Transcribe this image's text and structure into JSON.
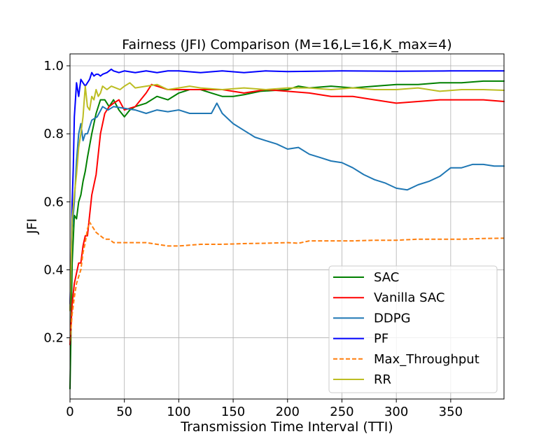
{
  "chart_data": {
    "type": "line",
    "title": "Fairness (JFI) Comparison (M=16,L=16,K_max=4)",
    "xlabel": "Transmission Time Interval (TTI)",
    "ylabel": "JFI",
    "xlim": [
      0,
      399
    ],
    "ylim": [
      0.02,
      1.035
    ],
    "xticks": [
      0,
      50,
      100,
      150,
      200,
      250,
      300,
      350
    ],
    "yticks": [
      0.2,
      0.4,
      0.6,
      0.8,
      1.0
    ],
    "xtick_labels": [
      "0",
      "50",
      "100",
      "150",
      "200",
      "250",
      "300",
      "350"
    ],
    "ytick_labels": [
      "0.2",
      "0.4",
      "0.6",
      "0.8",
      "1.0"
    ],
    "grid": true,
    "legend_position": "lower-right",
    "series": [
      {
        "name": "SAC",
        "color": "#008000",
        "dash": "solid",
        "x": [
          0,
          2,
          4,
          6,
          8,
          10,
          12,
          14,
          16,
          20,
          24,
          28,
          32,
          36,
          40,
          45,
          50,
          55,
          60,
          70,
          80,
          90,
          100,
          110,
          120,
          130,
          140,
          150,
          160,
          175,
          200,
          210,
          220,
          240,
          260,
          280,
          300,
          320,
          340,
          360,
          380,
          399
        ],
        "y": [
          0.05,
          0.42,
          0.56,
          0.55,
          0.6,
          0.62,
          0.66,
          0.69,
          0.73,
          0.8,
          0.86,
          0.9,
          0.9,
          0.88,
          0.9,
          0.87,
          0.85,
          0.87,
          0.88,
          0.89,
          0.91,
          0.9,
          0.92,
          0.93,
          0.93,
          0.92,
          0.91,
          0.91,
          0.915,
          0.925,
          0.93,
          0.94,
          0.935,
          0.94,
          0.935,
          0.94,
          0.945,
          0.945,
          0.95,
          0.95,
          0.955,
          0.955
        ]
      },
      {
        "name": "Vanilla SAC",
        "color": "#ff0000",
        "dash": "solid",
        "x": [
          0,
          2,
          4,
          6,
          8,
          10,
          12,
          14,
          16,
          20,
          24,
          28,
          32,
          36,
          40,
          45,
          50,
          60,
          70,
          75,
          80,
          90,
          100,
          120,
          140,
          160,
          180,
          200,
          220,
          240,
          260,
          280,
          300,
          320,
          340,
          360,
          380,
          399
        ],
        "y": [
          0.18,
          0.3,
          0.36,
          0.39,
          0.42,
          0.42,
          0.47,
          0.5,
          0.5,
          0.62,
          0.68,
          0.8,
          0.86,
          0.88,
          0.89,
          0.9,
          0.87,
          0.88,
          0.92,
          0.945,
          0.94,
          0.93,
          0.93,
          0.93,
          0.93,
          0.92,
          0.93,
          0.925,
          0.92,
          0.91,
          0.91,
          0.9,
          0.89,
          0.895,
          0.9,
          0.9,
          0.9,
          0.895
        ]
      },
      {
        "name": "DDPG",
        "color": "#1f77b4",
        "dash": "solid",
        "x": [
          0,
          2,
          4,
          6,
          8,
          10,
          12,
          14,
          16,
          20,
          25,
          30,
          35,
          40,
          50,
          60,
          70,
          80,
          90,
          100,
          110,
          120,
          130,
          135,
          140,
          150,
          160,
          170,
          180,
          190,
          200,
          210,
          220,
          230,
          240,
          250,
          260,
          270,
          280,
          290,
          300,
          310,
          320,
          330,
          340,
          350,
          360,
          370,
          380,
          390,
          399
        ],
        "y": [
          0.28,
          0.52,
          0.6,
          0.72,
          0.8,
          0.83,
          0.78,
          0.8,
          0.8,
          0.84,
          0.85,
          0.88,
          0.87,
          0.88,
          0.875,
          0.87,
          0.86,
          0.87,
          0.865,
          0.87,
          0.86,
          0.86,
          0.86,
          0.89,
          0.86,
          0.83,
          0.81,
          0.79,
          0.78,
          0.77,
          0.755,
          0.76,
          0.74,
          0.73,
          0.72,
          0.715,
          0.7,
          0.68,
          0.665,
          0.655,
          0.64,
          0.635,
          0.65,
          0.66,
          0.675,
          0.7,
          0.7,
          0.71,
          0.71,
          0.705,
          0.705
        ]
      },
      {
        "name": "PF",
        "color": "#0000ff",
        "dash": "solid",
        "x": [
          0,
          1,
          2,
          3,
          4,
          5,
          6,
          7,
          8,
          10,
          12,
          14,
          16,
          18,
          20,
          22,
          24,
          26,
          28,
          30,
          34,
          38,
          40,
          45,
          50,
          60,
          70,
          80,
          90,
          100,
          120,
          140,
          160,
          180,
          200,
          250,
          300,
          350,
          399
        ],
        "y": [
          0.3,
          0.42,
          0.6,
          0.7,
          0.85,
          0.9,
          0.95,
          0.93,
          0.91,
          0.96,
          0.95,
          0.94,
          0.95,
          0.96,
          0.98,
          0.97,
          0.975,
          0.975,
          0.97,
          0.975,
          0.98,
          0.99,
          0.985,
          0.98,
          0.985,
          0.98,
          0.985,
          0.98,
          0.985,
          0.985,
          0.98,
          0.985,
          0.98,
          0.985,
          0.983,
          0.985,
          0.984,
          0.985,
          0.985
        ]
      },
      {
        "name": "Max_Throughput",
        "color": "#ff7f0e",
        "dash": "dashed",
        "x": [
          0,
          2,
          4,
          6,
          8,
          10,
          12,
          14,
          16,
          18,
          20,
          24,
          28,
          32,
          36,
          40,
          50,
          60,
          70,
          80,
          90,
          100,
          120,
          140,
          160,
          180,
          200,
          210,
          220,
          240,
          260,
          280,
          300,
          320,
          340,
          360,
          380,
          399
        ],
        "y": [
          0.19,
          0.27,
          0.32,
          0.36,
          0.38,
          0.4,
          0.45,
          0.48,
          0.52,
          0.54,
          0.53,
          0.51,
          0.5,
          0.49,
          0.49,
          0.48,
          0.48,
          0.48,
          0.48,
          0.475,
          0.47,
          0.47,
          0.475,
          0.475,
          0.477,
          0.478,
          0.48,
          0.478,
          0.485,
          0.485,
          0.485,
          0.487,
          0.487,
          0.49,
          0.49,
          0.49,
          0.492,
          0.493
        ]
      },
      {
        "name": "RR",
        "color": "#bcbd22",
        "dash": "solid",
        "x": [
          0,
          2,
          4,
          6,
          8,
          10,
          12,
          14,
          16,
          18,
          20,
          22,
          24,
          26,
          28,
          30,
          34,
          38,
          42,
          46,
          50,
          55,
          60,
          70,
          80,
          90,
          100,
          110,
          120,
          140,
          160,
          180,
          200,
          220,
          240,
          260,
          280,
          300,
          320,
          340,
          360,
          380,
          399
        ],
        "y": [
          0.28,
          0.55,
          0.62,
          0.68,
          0.76,
          0.8,
          0.85,
          0.94,
          0.88,
          0.87,
          0.91,
          0.9,
          0.93,
          0.91,
          0.92,
          0.94,
          0.93,
          0.94,
          0.935,
          0.93,
          0.94,
          0.95,
          0.935,
          0.94,
          0.945,
          0.93,
          0.935,
          0.94,
          0.935,
          0.93,
          0.935,
          0.93,
          0.935,
          0.935,
          0.93,
          0.935,
          0.93,
          0.93,
          0.935,
          0.925,
          0.93,
          0.93,
          0.928
        ]
      }
    ]
  }
}
